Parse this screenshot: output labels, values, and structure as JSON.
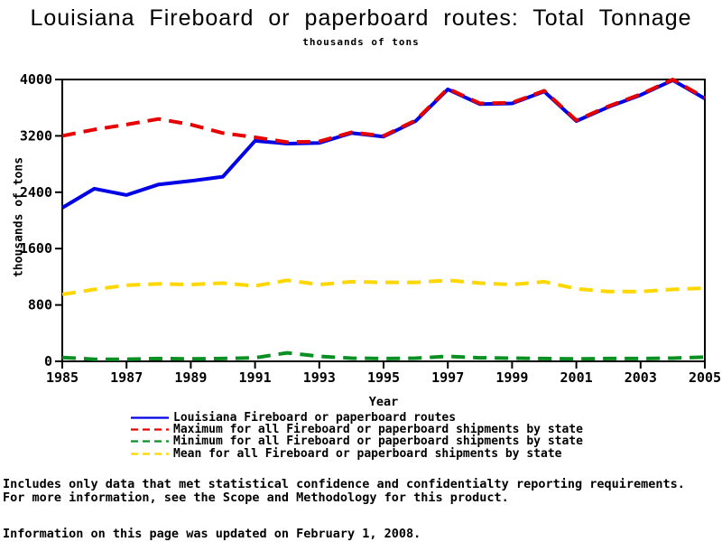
{
  "title": "Louisiana Fireboard or paperboard routes: Total Tonnage",
  "subtitle": "thousands of tons",
  "colors": {
    "louisiana_line": "#0000e6",
    "maximum_line": "#e60000",
    "minimum_line": "#0a8f22",
    "mean_line": "#ffd700",
    "axis": "#000000",
    "background": "#ffffff"
  },
  "chart_data": {
    "type": "line",
    "title": "Louisiana Fireboard or paperboard routes: Total Tonnage",
    "subtitle": "thousands of tons",
    "xlabel": "Year",
    "ylabel": "thousands of tons",
    "ylim": [
      0,
      4000
    ],
    "yticks": [
      0,
      800,
      1600,
      2400,
      3200,
      4000
    ],
    "xticks": [
      1985,
      1987,
      1989,
      1991,
      1993,
      1995,
      1997,
      1999,
      2001,
      2003,
      2005
    ],
    "grid": false,
    "legend_position": "bottom",
    "x": [
      1985,
      1986,
      1987,
      1988,
      1989,
      1990,
      1991,
      1992,
      1993,
      1994,
      1995,
      1996,
      1997,
      1998,
      1999,
      2000,
      2001,
      2002,
      2003,
      2004,
      2005
    ],
    "series": [
      {
        "name": "Louisiana Fireboard or paperboard routes",
        "color": "#0000e6",
        "dash": "solid",
        "values": [
          2180,
          2450,
          2360,
          2510,
          2560,
          2620,
          3130,
          3090,
          3100,
          3240,
          3190,
          3410,
          3860,
          3650,
          3660,
          3830,
          3410,
          3610,
          3780,
          3990,
          3730
        ]
      },
      {
        "name": "Maximum for all Fireboard or paperboard shipments by state",
        "color": "#e60000",
        "dash": "dashed",
        "values": [
          3200,
          3290,
          3360,
          3440,
          3360,
          3240,
          3180,
          3110,
          3120,
          3250,
          3200,
          3420,
          3870,
          3660,
          3670,
          3840,
          3420,
          3620,
          3790,
          4000,
          3740
        ]
      },
      {
        "name": "Minimum for all Fireboard or paperboard shipments by state",
        "color": "#0a8f22",
        "dash": "dashed",
        "values": [
          55,
          30,
          30,
          40,
          35,
          40,
          50,
          120,
          70,
          45,
          40,
          45,
          70,
          50,
          45,
          40,
          35,
          40,
          40,
          45,
          60
        ]
      },
      {
        "name": "Mean for all Fireboard or paperboard shipments by state",
        "color": "#ffd700",
        "dash": "dashed",
        "values": [
          950,
          1020,
          1080,
          1100,
          1090,
          1110,
          1070,
          1150,
          1090,
          1130,
          1120,
          1120,
          1150,
          1110,
          1090,
          1130,
          1030,
          990,
          990,
          1020,
          1040
        ]
      }
    ]
  },
  "footnotes": [
    "Includes only data that met statistical confidence and confidentialty reporting requirements.",
    "For more information, see the Scope and Methodology for this product."
  ],
  "updated_line": "Information on this page was updated on February 1, 2008."
}
